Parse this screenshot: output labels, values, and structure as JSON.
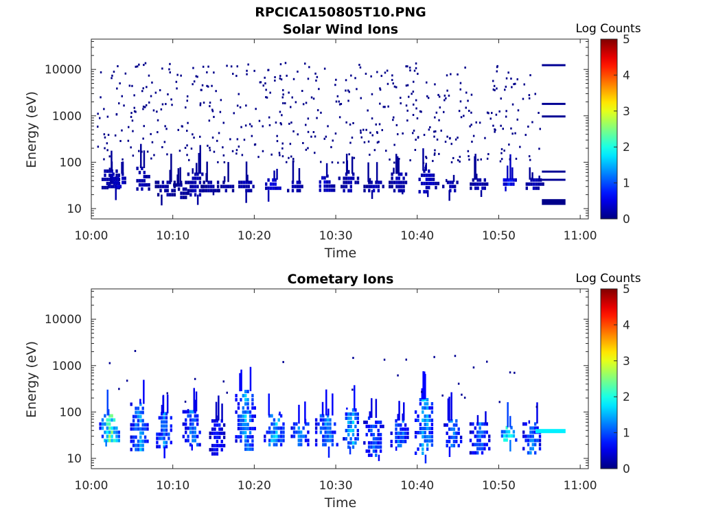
{
  "figure_title": "RPCICA150805T10.PNG",
  "chart_data": [
    {
      "type": "heatmap",
      "title": "Solar Wind Ions",
      "xlabel": "Time",
      "ylabel": "Energy (eV)",
      "yscale": "log",
      "ylim": [
        6,
        45000
      ],
      "xlim_minutes": [
        0,
        61
      ],
      "xticks": [
        "10:00",
        "10:10",
        "10:20",
        "10:30",
        "10:40",
        "10:50",
        "11:00"
      ],
      "yticks": [
        "10",
        "100",
        "1000",
        "10000"
      ],
      "ytick_values": [
        10,
        100,
        1000,
        10000
      ],
      "colorbar": {
        "label": "Log Counts",
        "min": 0,
        "max": 5,
        "ticks": [
          "0",
          "1",
          "2",
          "3",
          "4",
          "5"
        ]
      },
      "grid": false,
      "clusters": [
        {
          "t": 2.2,
          "e": [
            28,
            70
          ],
          "level": 0.3
        },
        {
          "t": 3.2,
          "e": [
            28,
            60
          ],
          "level": 0.4
        },
        {
          "t": 6.2,
          "e": [
            25,
            80
          ],
          "level": 0.3
        },
        {
          "t": 9.0,
          "e": [
            20,
            40
          ],
          "level": 0.2
        },
        {
          "t": 11.0,
          "e": [
            18,
            35
          ],
          "level": 0.2
        },
        {
          "t": 12.6,
          "e": [
            20,
            60
          ],
          "level": 0.3
        },
        {
          "t": 14.5,
          "e": [
            25,
            40
          ],
          "level": 0.2
        },
        {
          "t": 16.5,
          "e": [
            25,
            40
          ],
          "level": 0.2
        },
        {
          "t": 18.7,
          "e": [
            25,
            40
          ],
          "level": 0.3
        },
        {
          "t": 22.2,
          "e": [
            25,
            45
          ],
          "level": 0.5
        },
        {
          "t": 25.0,
          "e": [
            25,
            40
          ],
          "level": 0.3
        },
        {
          "t": 28.6,
          "e": [
            25,
            50
          ],
          "level": 0.4
        },
        {
          "t": 31.5,
          "e": [
            25,
            60
          ],
          "level": 0.3
        },
        {
          "t": 34.6,
          "e": [
            25,
            40
          ],
          "level": 0.3
        },
        {
          "t": 37.6,
          "e": [
            25,
            60
          ],
          "level": 0.3
        },
        {
          "t": 41.2,
          "e": [
            25,
            70
          ],
          "level": 0.4
        },
        {
          "t": 44.0,
          "e": [
            25,
            40
          ],
          "level": 0.3
        },
        {
          "t": 47.5,
          "e": [
            25,
            45
          ],
          "level": 0.3
        },
        {
          "t": 51.2,
          "e": [
            30,
            45
          ],
          "level": 0.8
        },
        {
          "t": 54.2,
          "e": [
            25,
            45
          ],
          "level": 0.3
        }
      ],
      "bands": [
        {
          "t": [
            55.3,
            58.2
          ],
          "e": [
            12000,
            13000
          ],
          "level": 0.1
        },
        {
          "t": [
            55.3,
            58.2
          ],
          "e": [
            1750,
            1900
          ],
          "level": 0.1
        },
        {
          "t": [
            55.3,
            58.2
          ],
          "e": [
            940,
            1020
          ],
          "level": 0.1
        },
        {
          "t": [
            55.3,
            58.2
          ],
          "e": [
            60,
            66
          ],
          "level": 0.1
        },
        {
          "t": [
            55.3,
            58.2
          ],
          "e": [
            40,
            44
          ],
          "level": 0.1
        },
        {
          "t": [
            55.3,
            58.2
          ],
          "e": [
            12,
            16
          ],
          "level": 0.05
        }
      ],
      "scatter_noise": {
        "count": 520,
        "e_range": [
          100,
          15000
        ],
        "t_range": [
          0.5,
          55
        ],
        "level": 0.05
      }
    },
    {
      "type": "heatmap",
      "title": "Cometary Ions",
      "xlabel": "Time",
      "ylabel": "Energy (eV)",
      "yscale": "log",
      "ylim": [
        6,
        45000
      ],
      "xlim_minutes": [
        0,
        61
      ],
      "xticks": [
        "10:00",
        "10:10",
        "10:20",
        "10:30",
        "10:40",
        "10:50",
        "11:00"
      ],
      "yticks": [
        "10",
        "100",
        "1000",
        "10000"
      ],
      "ytick_values": [
        10,
        100,
        1000,
        10000
      ],
      "colorbar": {
        "label": "Log Counts",
        "min": 0,
        "max": 5,
        "ticks": [
          "0",
          "1",
          "2",
          "3",
          "4",
          "5"
        ]
      },
      "grid": false,
      "clusters": [
        {
          "t": 2.2,
          "e": [
            25,
            90
          ],
          "level": 2.4
        },
        {
          "t": 5.8,
          "e": [
            14,
            160
          ],
          "level": 1.5
        },
        {
          "t": 8.8,
          "e": [
            18,
            100
          ],
          "level": 1.3
        },
        {
          "t": 12.3,
          "e": [
            20,
            110
          ],
          "level": 1.3
        },
        {
          "t": 15.4,
          "e": [
            12,
            70
          ],
          "level": 0.8
        },
        {
          "t": 18.8,
          "e": [
            16,
            300
          ],
          "level": 1.5
        },
        {
          "t": 22.4,
          "e": [
            18,
            90
          ],
          "level": 1.7
        },
        {
          "t": 25.6,
          "e": [
            18,
            60
          ],
          "level": 1.5
        },
        {
          "t": 28.8,
          "e": [
            18,
            90
          ],
          "level": 1.5
        },
        {
          "t": 31.8,
          "e": [
            18,
            120
          ],
          "level": 1.7
        },
        {
          "t": 34.6,
          "e": [
            12,
            80
          ],
          "level": 1.2
        },
        {
          "t": 37.8,
          "e": [
            18,
            70
          ],
          "level": 1.3
        },
        {
          "t": 40.8,
          "e": [
            12,
            200
          ],
          "level": 1.6
        },
        {
          "t": 44.3,
          "e": [
            18,
            70
          ],
          "level": 1.3
        },
        {
          "t": 47.6,
          "e": [
            12,
            60
          ],
          "level": 1.2
        },
        {
          "t": 51.0,
          "e": [
            25,
            50
          ],
          "level": 2.4
        },
        {
          "t": 54.0,
          "e": [
            14,
            60
          ],
          "level": 1.3
        }
      ],
      "bands": [
        {
          "t": [
            54.5,
            58.2
          ],
          "e": [
            35,
            43
          ],
          "level": 1.8
        }
      ],
      "scatter_noise": {
        "count": 28,
        "e_range": [
          120,
          2200
        ],
        "t_range": [
          2,
          55
        ],
        "level": 0.1
      }
    }
  ]
}
